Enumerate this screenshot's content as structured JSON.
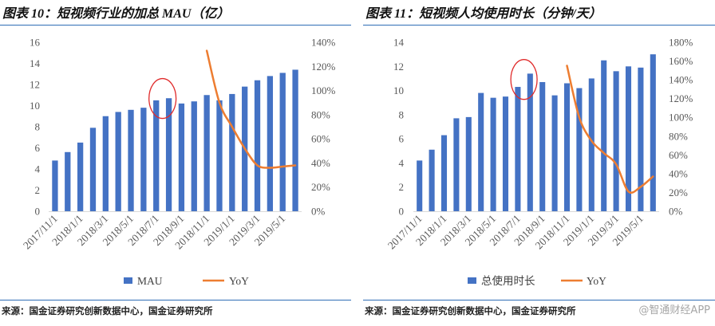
{
  "watermark": "@智通财经APP",
  "chart_data": [
    {
      "type": "bar",
      "title": "图表 10：短视频行业的加总 MAU（亿）",
      "categories": [
        "2017/11/1",
        "",
        "2018/1/1",
        "",
        "2018/3/1",
        "",
        "2018/5/1",
        "",
        "2018/7/1",
        "",
        "2018/9/1",
        "",
        "2018/11/1",
        "",
        "2019/1/1",
        "",
        "2019/3/1",
        "",
        "2019/5/1",
        ""
      ],
      "series": [
        {
          "name": "MAU",
          "type": "bar",
          "y_axis": "left",
          "color": "#4472C4",
          "values": [
            4.8,
            5.6,
            6.5,
            7.9,
            9.0,
            9.4,
            9.6,
            9.8,
            10.5,
            10.7,
            10.2,
            10.4,
            11.0,
            10.5,
            11.1,
            11.8,
            12.4,
            12.8,
            13.1,
            13.4
          ]
        },
        {
          "name": "YoY",
          "type": "line",
          "y_axis": "right",
          "color": "#ED7D31",
          "values": [
            null,
            null,
            null,
            null,
            null,
            null,
            null,
            null,
            null,
            null,
            null,
            null,
            133,
            90,
            70,
            52,
            38,
            36,
            37,
            38
          ]
        }
      ],
      "ylim": [
        0,
        16
      ],
      "yticks": [
        0,
        2,
        4,
        6,
        8,
        10,
        12,
        14,
        16
      ],
      "y2lim": [
        0,
        140
      ],
      "y2ticks": [
        0,
        20,
        40,
        60,
        80,
        100,
        120,
        140
      ],
      "y2_unit": "%",
      "grid": false,
      "legend": "bottom",
      "highlight": {
        "bars": [
          8,
          9
        ],
        "color": "#E02B2B"
      },
      "source": "来源：国金证券研究创新数据中心，国金证券研究所"
    },
    {
      "type": "bar",
      "title": "图表 11：短视频人均使用时长（分钟/天）",
      "categories": [
        "2017/11/1",
        "",
        "2018/1/1",
        "",
        "2018/3/1",
        "",
        "2018/5/1",
        "",
        "2018/7/1",
        "",
        "2018/9/1",
        "",
        "2018/11/1",
        "",
        "2019/1/1",
        "",
        "2019/3/1",
        "",
        "2019/5/1",
        ""
      ],
      "series": [
        {
          "name": "总使用时长",
          "type": "bar",
          "y_axis": "left",
          "color": "#4472C4",
          "values": [
            4.2,
            5.1,
            6.3,
            7.7,
            7.8,
            9.8,
            9.4,
            9.5,
            10.3,
            11.4,
            10.7,
            9.6,
            10.6,
            10.2,
            11.0,
            12.5,
            11.6,
            12.0,
            11.9,
            13.0
          ]
        },
        {
          "name": "YoY",
          "type": "line",
          "y_axis": "right",
          "color": "#ED7D31",
          "values": [
            null,
            null,
            null,
            null,
            null,
            null,
            null,
            null,
            null,
            null,
            null,
            null,
            155,
            100,
            75,
            62,
            50,
            21,
            26,
            37
          ]
        }
      ],
      "ylim": [
        0,
        14
      ],
      "yticks": [
        0,
        2,
        4,
        6,
        8,
        10,
        12,
        14
      ],
      "y2lim": [
        0,
        180
      ],
      "y2ticks": [
        0,
        20,
        40,
        60,
        80,
        100,
        120,
        140,
        160,
        180
      ],
      "y2_unit": "%",
      "grid": false,
      "legend": "bottom",
      "highlight": {
        "bars": [
          8,
          9
        ],
        "color": "#E02B2B"
      },
      "source": "来源：国金证券研究创新数据中心，国金证券研究所"
    }
  ]
}
